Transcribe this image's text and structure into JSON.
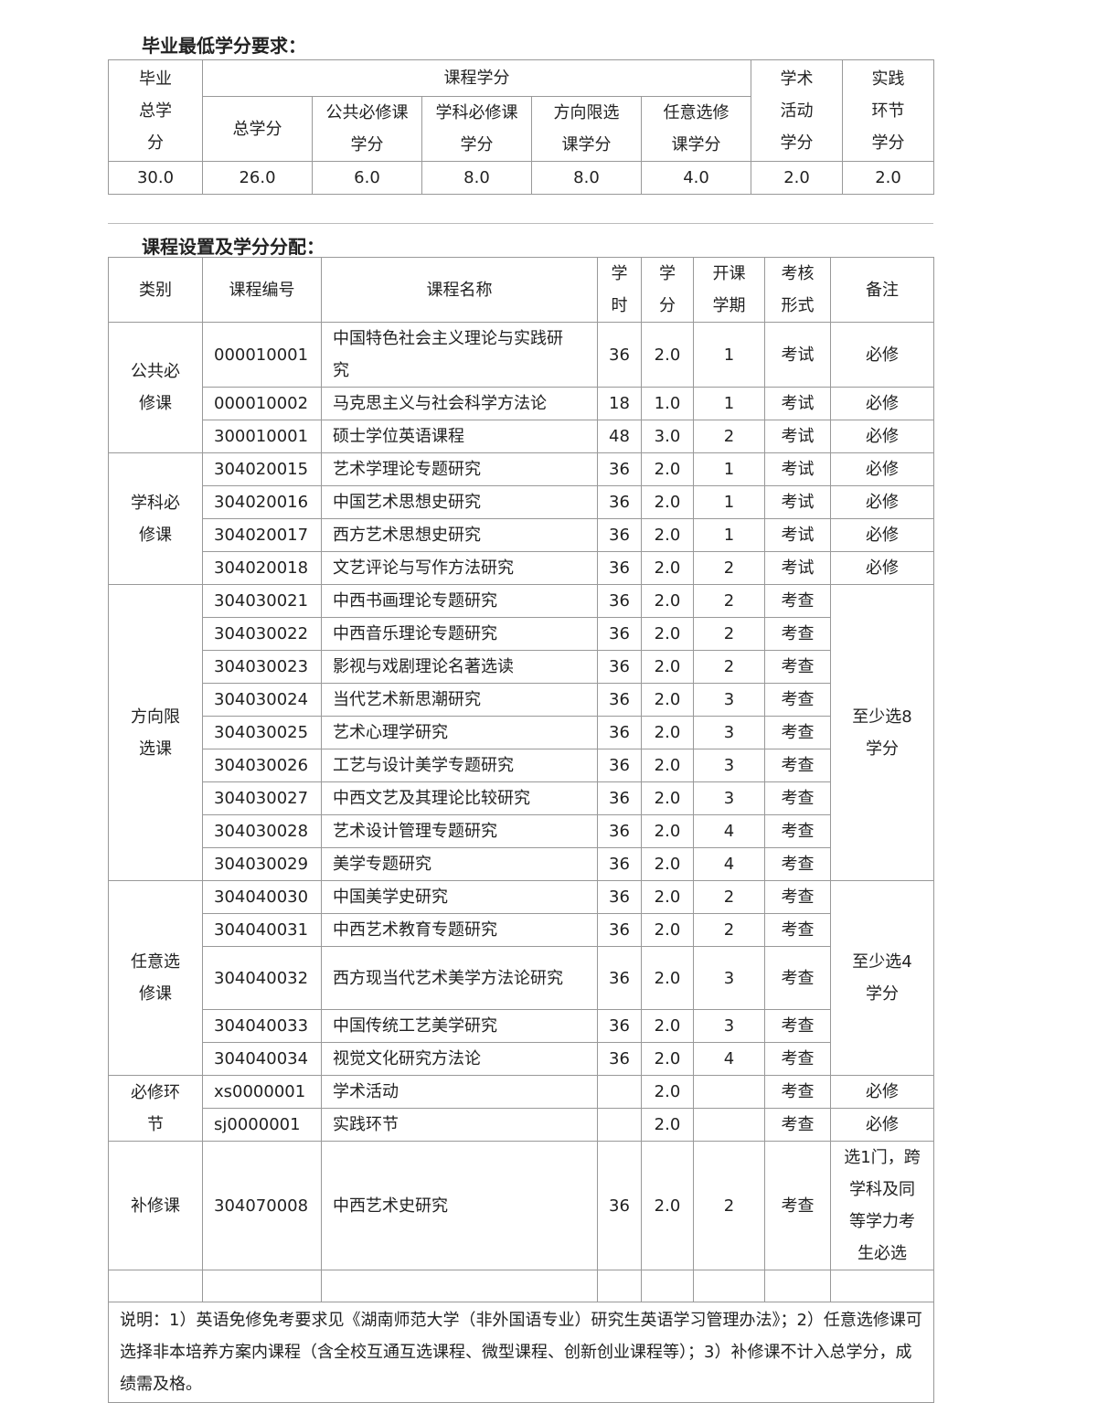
{
  "section1": {
    "title": "毕业最低学分要求：",
    "h_total": "毕业总学分",
    "h_course": "课程学分",
    "h_academic": "学术活动学分",
    "h_practice": "实践环节学分",
    "sub": [
      "总学分",
      "公共必修课学分",
      "学科必修课学分",
      "方向限选课学分",
      "任意选修课学分"
    ],
    "values": [
      "30.0",
      "26.0",
      "6.0",
      "8.0",
      "8.0",
      "4.0",
      "2.0",
      "2.0"
    ]
  },
  "section2": {
    "title": "课程设置及学分分配：",
    "headers": [
      "类别",
      "课程编号",
      "课程名称",
      "学时",
      "学分",
      "开课学期",
      "考核形式",
      "备注"
    ],
    "groups": [
      {
        "category": "公共必修课",
        "rows": [
          [
            "000010001",
            "中国特色社会主义理论与实践研究",
            "36",
            "2.0",
            "1",
            "考试",
            "必修"
          ],
          [
            "000010002",
            "马克思主义与社会科学方法论",
            "18",
            "1.0",
            "1",
            "考试",
            "必修"
          ],
          [
            "300010001",
            "硕士学位英语课程",
            "48",
            "3.0",
            "2",
            "考试",
            "必修"
          ]
        ]
      },
      {
        "category": "学科必修课",
        "rows": [
          [
            "304020015",
            "艺术学理论专题研究",
            "36",
            "2.0",
            "1",
            "考试",
            "必修"
          ],
          [
            "304020016",
            "中国艺术思想史研究",
            "36",
            "2.0",
            "1",
            "考试",
            "必修"
          ],
          [
            "304020017",
            "西方艺术思想史研究",
            "36",
            "2.0",
            "1",
            "考试",
            "必修"
          ],
          [
            "304020018",
            "文艺评论与写作方法研究",
            "36",
            "2.0",
            "2",
            "考试",
            "必修"
          ]
        ]
      },
      {
        "category": "方向限选课",
        "remark": "至少选8学分",
        "rows": [
          [
            "304030021",
            "中西书画理论专题研究",
            "36",
            "2.0",
            "2",
            "考查"
          ],
          [
            "304030022",
            "中西音乐理论专题研究",
            "36",
            "2.0",
            "2",
            "考查"
          ],
          [
            "304030023",
            "影视与戏剧理论名著选读",
            "36",
            "2.0",
            "2",
            "考查"
          ],
          [
            "304030024",
            "当代艺术新思潮研究",
            "36",
            "2.0",
            "3",
            "考查"
          ],
          [
            "304030025",
            "艺术心理学研究",
            "36",
            "2.0",
            "3",
            "考查"
          ],
          [
            "304030026",
            "工艺与设计美学专题研究",
            "36",
            "2.0",
            "3",
            "考查"
          ],
          [
            "304030027",
            "中西文艺及其理论比较研究",
            "36",
            "2.0",
            "3",
            "考查"
          ],
          [
            "304030028",
            "艺术设计管理专题研究",
            "36",
            "2.0",
            "4",
            "考查"
          ],
          [
            "304030029",
            "美学专题研究",
            "36",
            "2.0",
            "4",
            "考查"
          ]
        ]
      },
      {
        "category": "任意选修课",
        "remark": "至少选4学分",
        "rows": [
          [
            "304040030",
            "中国美学史研究",
            "36",
            "2.0",
            "2",
            "考查"
          ],
          [
            "304040031",
            "中西艺术教育专题研究",
            "36",
            "2.0",
            "2",
            "考查"
          ],
          [
            "304040032",
            "西方现当代艺术美学方法论研究",
            "36",
            "2.0",
            "3",
            "考查"
          ],
          [
            "304040033",
            "中国传统工艺美学研究",
            "36",
            "2.0",
            "3",
            "考查"
          ],
          [
            "304040034",
            "视觉文化研究方法论",
            "36",
            "2.0",
            "4",
            "考查"
          ]
        ]
      },
      {
        "category": "必修环节",
        "rows": [
          [
            "xs0000001",
            "学术活动",
            "",
            "2.0",
            "",
            "考查",
            "必修"
          ],
          [
            "sj0000001",
            "实践环节",
            "",
            "2.0",
            "",
            "考查",
            "必修"
          ]
        ]
      },
      {
        "category": "补修课",
        "rows": [
          [
            "304070008",
            "中西艺术史研究",
            "36",
            "2.0",
            "2",
            "考查",
            "选1门，跨学科及同等学力考生必选"
          ]
        ]
      }
    ],
    "note": "说明：1）英语免修免考要求见《湖南师范大学（非外国语专业）研究生英语学习管理办法》；2）任意选修课可选择非本培养方案内课程（含全校互通互选课程、微型课程、创新创业课程等）；3）补修课不计入总学分，成绩需及格。"
  }
}
